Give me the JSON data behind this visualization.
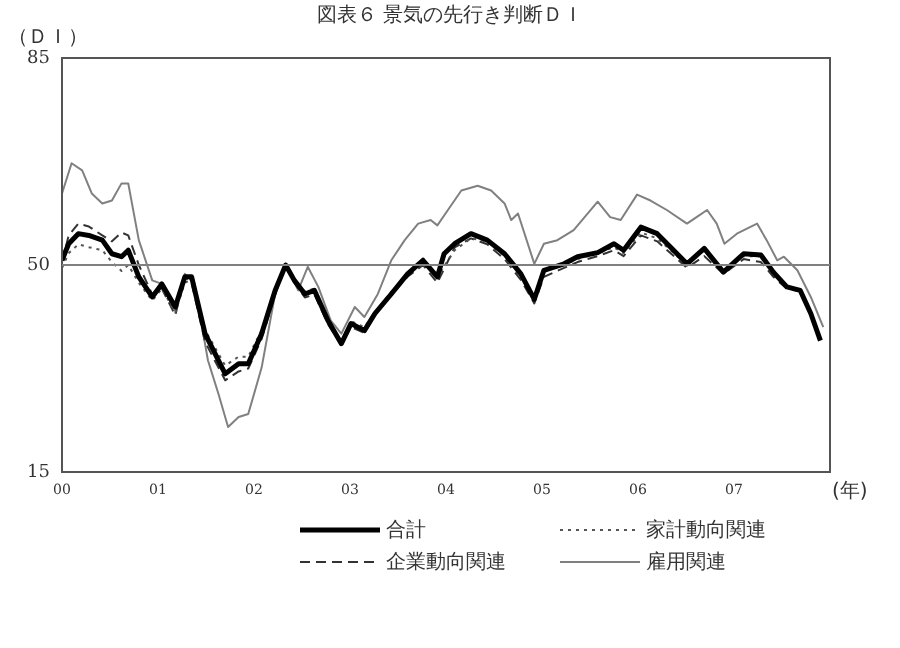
{
  "chart_data": {
    "type": "line",
    "title": "図表６ 景気の先行き判断ＤＩ",
    "ylabel": "（ＤＩ）",
    "xlabel": "(年)",
    "xlim": [
      0,
      8
    ],
    "xticks": [
      {
        "value": 0,
        "label": "00"
      },
      {
        "value": 1,
        "label": "01"
      },
      {
        "value": 2,
        "label": "02"
      },
      {
        "value": 3,
        "label": "03"
      },
      {
        "value": 4,
        "label": "04"
      },
      {
        "value": 5,
        "label": "05"
      },
      {
        "value": 6,
        "label": "06"
      },
      {
        "value": 7,
        "label": "07"
      }
    ],
    "ylim": [
      15,
      85
    ],
    "yticks": [
      15,
      50,
      85
    ],
    "grid": false,
    "legend": "bottom",
    "marker": "none",
    "ref_lines": [
      {
        "axis": "y",
        "value": 50,
        "color": "#808080"
      }
    ],
    "series": [
      {
        "name": "合計",
        "color": "#000000",
        "line_style": "solid",
        "x": [
          0,
          0.07,
          0.17,
          0.28,
          0.42,
          0.52,
          0.62,
          0.69,
          0.8,
          0.94,
          1.04,
          1.18,
          1.28,
          1.35,
          1.49,
          1.7,
          1.84,
          1.94,
          2.08,
          2.22,
          2.33,
          2.42,
          2.53,
          2.63,
          2.77,
          2.91,
          3.01,
          3.15,
          3.26,
          3.43,
          3.6,
          3.76,
          3.91,
          3.98,
          4.09,
          4.26,
          4.43,
          4.61,
          4.78,
          4.92,
          5.02,
          5.23,
          5.37,
          5.58,
          5.75,
          5.85,
          6.03,
          6.2,
          6.34,
          6.51,
          6.69,
          6.89,
          7.1,
          7.28,
          7.41,
          7.55,
          7.69,
          7.8,
          7.9
        ],
        "values": [
          50.8,
          53.6,
          55.3,
          55,
          54.2,
          51.9,
          51.4,
          52.5,
          48,
          44.6,
          46.8,
          42.9,
          48,
          48,
          38.4,
          31.6,
          33.3,
          33.3,
          38.4,
          45.7,
          50,
          47.4,
          45.1,
          45.7,
          40.6,
          36.7,
          40.1,
          38.9,
          41.8,
          45.1,
          48.5,
          50.8,
          48,
          51.9,
          53.6,
          55.3,
          54.2,
          51.9,
          48.5,
          44.2,
          49.1,
          50.2,
          51.4,
          52.1,
          53.6,
          52.5,
          56.4,
          55.3,
          53,
          50.2,
          52.8,
          48.8,
          51.9,
          51.7,
          48.8,
          46.3,
          45.7,
          41.8,
          37.2
        ]
      },
      {
        "name": "家計動向関連",
        "color": "#555555",
        "line_style": "dotted",
        "x": [
          0,
          0.07,
          0.17,
          0.28,
          0.42,
          0.52,
          0.62,
          0.69,
          0.8,
          0.94,
          1.04,
          1.18,
          1.28,
          1.35,
          1.49,
          1.7,
          1.84,
          1.94,
          2.08,
          2.22,
          2.33,
          2.42,
          2.53,
          2.63,
          2.77,
          2.91,
          3.01,
          3.15,
          3.26,
          3.43,
          3.6,
          3.76,
          3.91,
          4.09,
          4.26,
          4.43,
          4.61,
          4.78,
          4.92,
          5.02,
          5.23,
          5.37,
          5.58,
          5.75,
          5.85,
          6.03,
          6.2,
          6.34,
          6.51,
          6.69,
          6.89,
          7.1,
          7.28,
          7.41,
          7.55,
          7.69,
          7.8,
          7.9
        ],
        "values": [
          49.5,
          52,
          53.5,
          53,
          52.5,
          50.5,
          49,
          50,
          47,
          44,
          46,
          42,
          47,
          47.5,
          39,
          33,
          34.5,
          34.5,
          39,
          46,
          50,
          47.5,
          45.5,
          46,
          41,
          37,
          40.5,
          39.5,
          42,
          45.5,
          48.5,
          50.5,
          48,
          52.5,
          54.5,
          54,
          51.5,
          48,
          44.5,
          49,
          50,
          51,
          52,
          53,
          52,
          55.5,
          54.5,
          52.5,
          50,
          52.5,
          49,
          51.5,
          51.5,
          48.5,
          46.5,
          45.5,
          41.5,
          37
        ]
      },
      {
        "name": "企業動向関連",
        "color": "#333333",
        "line_style": "dashed",
        "x": [
          0,
          0.07,
          0.17,
          0.28,
          0.42,
          0.52,
          0.62,
          0.69,
          0.8,
          0.94,
          1.04,
          1.18,
          1.28,
          1.35,
          1.49,
          1.7,
          1.84,
          1.94,
          2.08,
          2.22,
          2.33,
          2.42,
          2.53,
          2.63,
          2.77,
          2.91,
          3.01,
          3.15,
          3.26,
          3.43,
          3.6,
          3.76,
          3.91,
          4.09,
          4.26,
          4.43,
          4.61,
          4.78,
          4.92,
          5.02,
          5.23,
          5.37,
          5.58,
          5.75,
          5.85,
          6.03,
          6.2,
          6.34,
          6.51,
          6.69,
          6.89,
          7.1,
          7.28,
          7.41,
          7.55,
          7.69,
          7.8,
          7.9
        ],
        "values": [
          50.5,
          55,
          57,
          56.5,
          55,
          54,
          55.5,
          55,
          50,
          45,
          46,
          41.5,
          48,
          47,
          37,
          30.5,
          32,
          32.5,
          37.5,
          45,
          50,
          47,
          44.5,
          45,
          40,
          36.5,
          39.5,
          38.5,
          41.5,
          45,
          48,
          50,
          47,
          53,
          54.5,
          53.5,
          51,
          47.5,
          43.5,
          48,
          49.5,
          50.5,
          51.5,
          52.5,
          51.5,
          55,
          54,
          52,
          49.5,
          51.5,
          48.5,
          51,
          50.5,
          48,
          46,
          45.5,
          41.5,
          37.5
        ]
      },
      {
        "name": "雇用関連",
        "color": "#808080",
        "line_style": "solid",
        "x": [
          0,
          0.1,
          0.21,
          0.31,
          0.42,
          0.52,
          0.62,
          0.69,
          0.8,
          0.94,
          1.04,
          1.18,
          1.28,
          1.38,
          1.52,
          1.63,
          1.73,
          1.84,
          1.94,
          2.08,
          2.22,
          2.33,
          2.46,
          2.56,
          2.67,
          2.8,
          2.91,
          3.05,
          3.15,
          3.29,
          3.43,
          3.57,
          3.71,
          3.84,
          3.91,
          4.02,
          4.16,
          4.33,
          4.47,
          4.61,
          4.68,
          4.75,
          4.92,
          5.02,
          5.16,
          5.33,
          5.58,
          5.71,
          5.82,
          5.99,
          6.13,
          6.3,
          6.51,
          6.61,
          6.72,
          6.82,
          6.9,
          7.03,
          7.24,
          7.34,
          7.45,
          7.52,
          7.66,
          7.8,
          7.93
        ],
        "values": [
          62.1,
          67.2,
          66,
          62.1,
          60.4,
          60.9,
          63.8,
          63.8,
          54.2,
          47.4,
          46.8,
          42.3,
          48.5,
          46.8,
          33.9,
          28.2,
          22.6,
          24.3,
          24.8,
          32.7,
          45.1,
          50.2,
          45.7,
          49.7,
          46.3,
          40.6,
          38.4,
          42.9,
          41.2,
          45.1,
          50.8,
          54.2,
          57,
          57.6,
          56.7,
          59.3,
          62.6,
          63.4,
          62.6,
          60.4,
          57.6,
          58.7,
          50.2,
          53.6,
          54.2,
          55.9,
          60.7,
          58.1,
          57.6,
          61.9,
          60.9,
          59.3,
          57,
          58.1,
          59.3,
          57,
          53.6,
          55.3,
          57,
          54.2,
          50.8,
          51.4,
          49.1,
          44.6,
          39.5
        ]
      }
    ]
  }
}
